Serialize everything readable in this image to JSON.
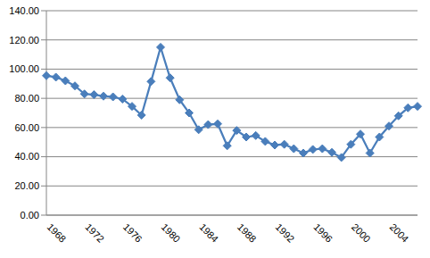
{
  "chart_data": {
    "type": "line",
    "categories": [
      "1968",
      null,
      null,
      null,
      "1972",
      null,
      null,
      null,
      "1976",
      null,
      null,
      null,
      "1980",
      null,
      null,
      null,
      "1984",
      null,
      null,
      null,
      "1988",
      null,
      null,
      null,
      "1992",
      null,
      null,
      null,
      "1996",
      null,
      null,
      null,
      "2000",
      null,
      null,
      null,
      "2004",
      null,
      null,
      null
    ],
    "values": [
      95.5,
      94.5,
      92,
      88.5,
      83,
      82.5,
      81.5,
      81,
      79.5,
      74.5,
      68.5,
      91.5,
      115,
      94,
      79,
      70,
      58.5,
      62,
      62.5,
      47.5,
      58,
      53.5,
      54.5,
      50.5,
      48,
      48.5,
      45.5,
      42.5,
      45,
      45.5,
      43,
      39.5,
      48.5,
      55.5,
      42.5,
      53.5,
      61,
      68,
      73.5,
      74.5
    ],
    "color": "#4a7ebb",
    "marker": "diamond",
    "ylim": [
      0,
      140
    ],
    "yticks": [
      {
        "value": 0,
        "label": "0.00"
      },
      {
        "value": 20,
        "label": "20.00"
      },
      {
        "value": 40,
        "label": "40.00"
      },
      {
        "value": 60,
        "label": "60.00"
      },
      {
        "value": 80,
        "label": "80.00"
      },
      {
        "value": 100,
        "label": "100.00"
      },
      {
        "value": 120,
        "label": "120.00"
      },
      {
        "value": 140,
        "label": "140.00"
      }
    ],
    "grid": true
  }
}
